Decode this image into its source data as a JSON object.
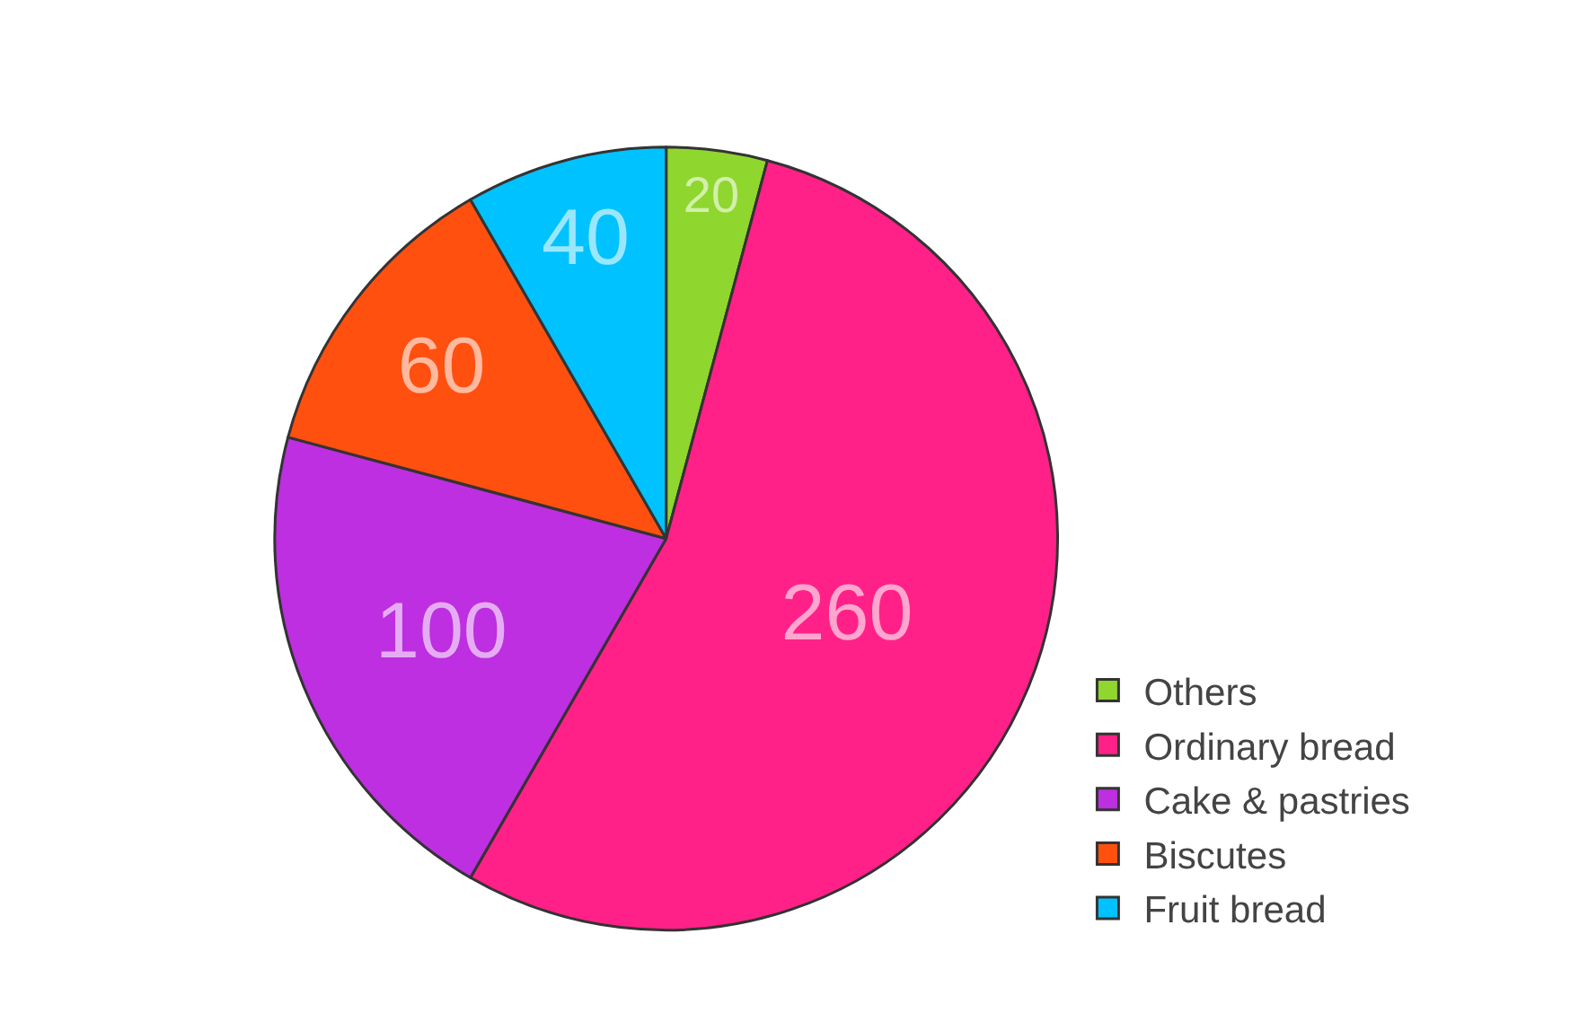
{
  "chart_data": {
    "type": "pie",
    "categories": [
      "Others",
      "Ordinary bread",
      "Cake & pastries",
      "Biscutes",
      "Fruit bread"
    ],
    "values": [
      20,
      260,
      100,
      60,
      40
    ],
    "colors": [
      "#8fd62e",
      "#ff2188",
      "#bd2fe0",
      "#ff5010",
      "#00c2ff"
    ],
    "data_labels": true,
    "legend": "bottom right"
  }
}
